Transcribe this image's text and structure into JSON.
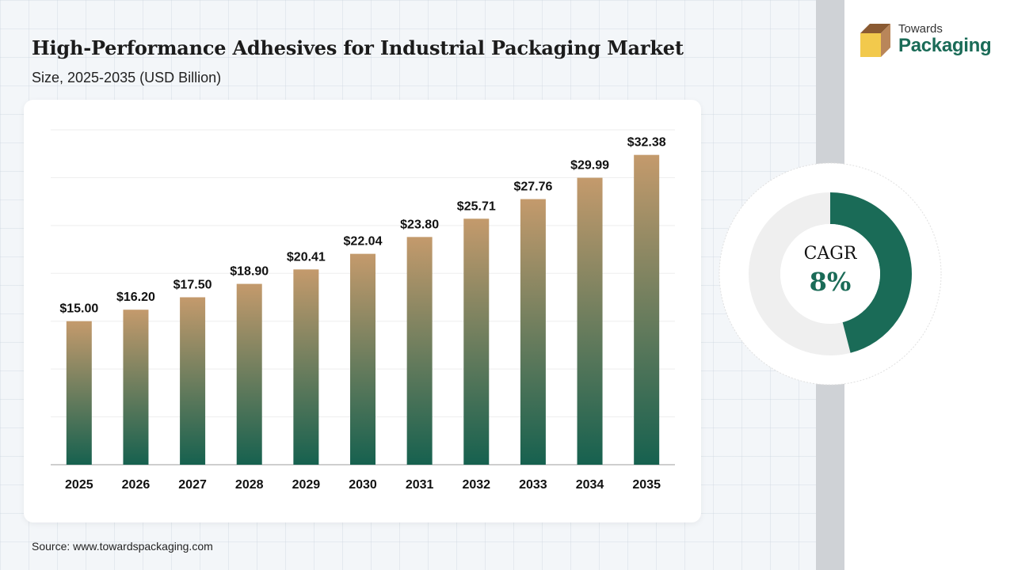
{
  "header": {
    "title": "High-Performance Adhesives for Industrial Packaging Market",
    "subtitle": "Size, 2025-2035 (USD Billion)"
  },
  "logo": {
    "line1": "Towards",
    "line2": "Packaging"
  },
  "footer": {
    "source": "Source: www.towardspackaging.com"
  },
  "cagr": {
    "label": "CAGR",
    "value": "8%",
    "fraction": 0.46
  },
  "colors": {
    "bar_top": "#c49a6c",
    "bar_bottom": "#16614f",
    "accent": "#1a6b57",
    "donut_track": "#efefef"
  },
  "chart_data": {
    "type": "bar",
    "title": "High-Performance Adhesives for Industrial Packaging Market",
    "categories": [
      "2025",
      "2026",
      "2027",
      "2028",
      "2029",
      "2030",
      "2031",
      "2032",
      "2033",
      "2034",
      "2035"
    ],
    "values": [
      15.0,
      16.2,
      17.5,
      18.9,
      20.41,
      22.04,
      23.8,
      25.71,
      27.76,
      29.99,
      32.38
    ],
    "data_labels": [
      "$15.00",
      "$16.20",
      "$17.50",
      "$18.90",
      "$20.41",
      "$22.04",
      "$23.80",
      "$25.71",
      "$27.76",
      "$29.99",
      "$32.38"
    ],
    "ylim": [
      0,
      35
    ],
    "grid": true,
    "xlabel": "",
    "ylabel": ""
  }
}
